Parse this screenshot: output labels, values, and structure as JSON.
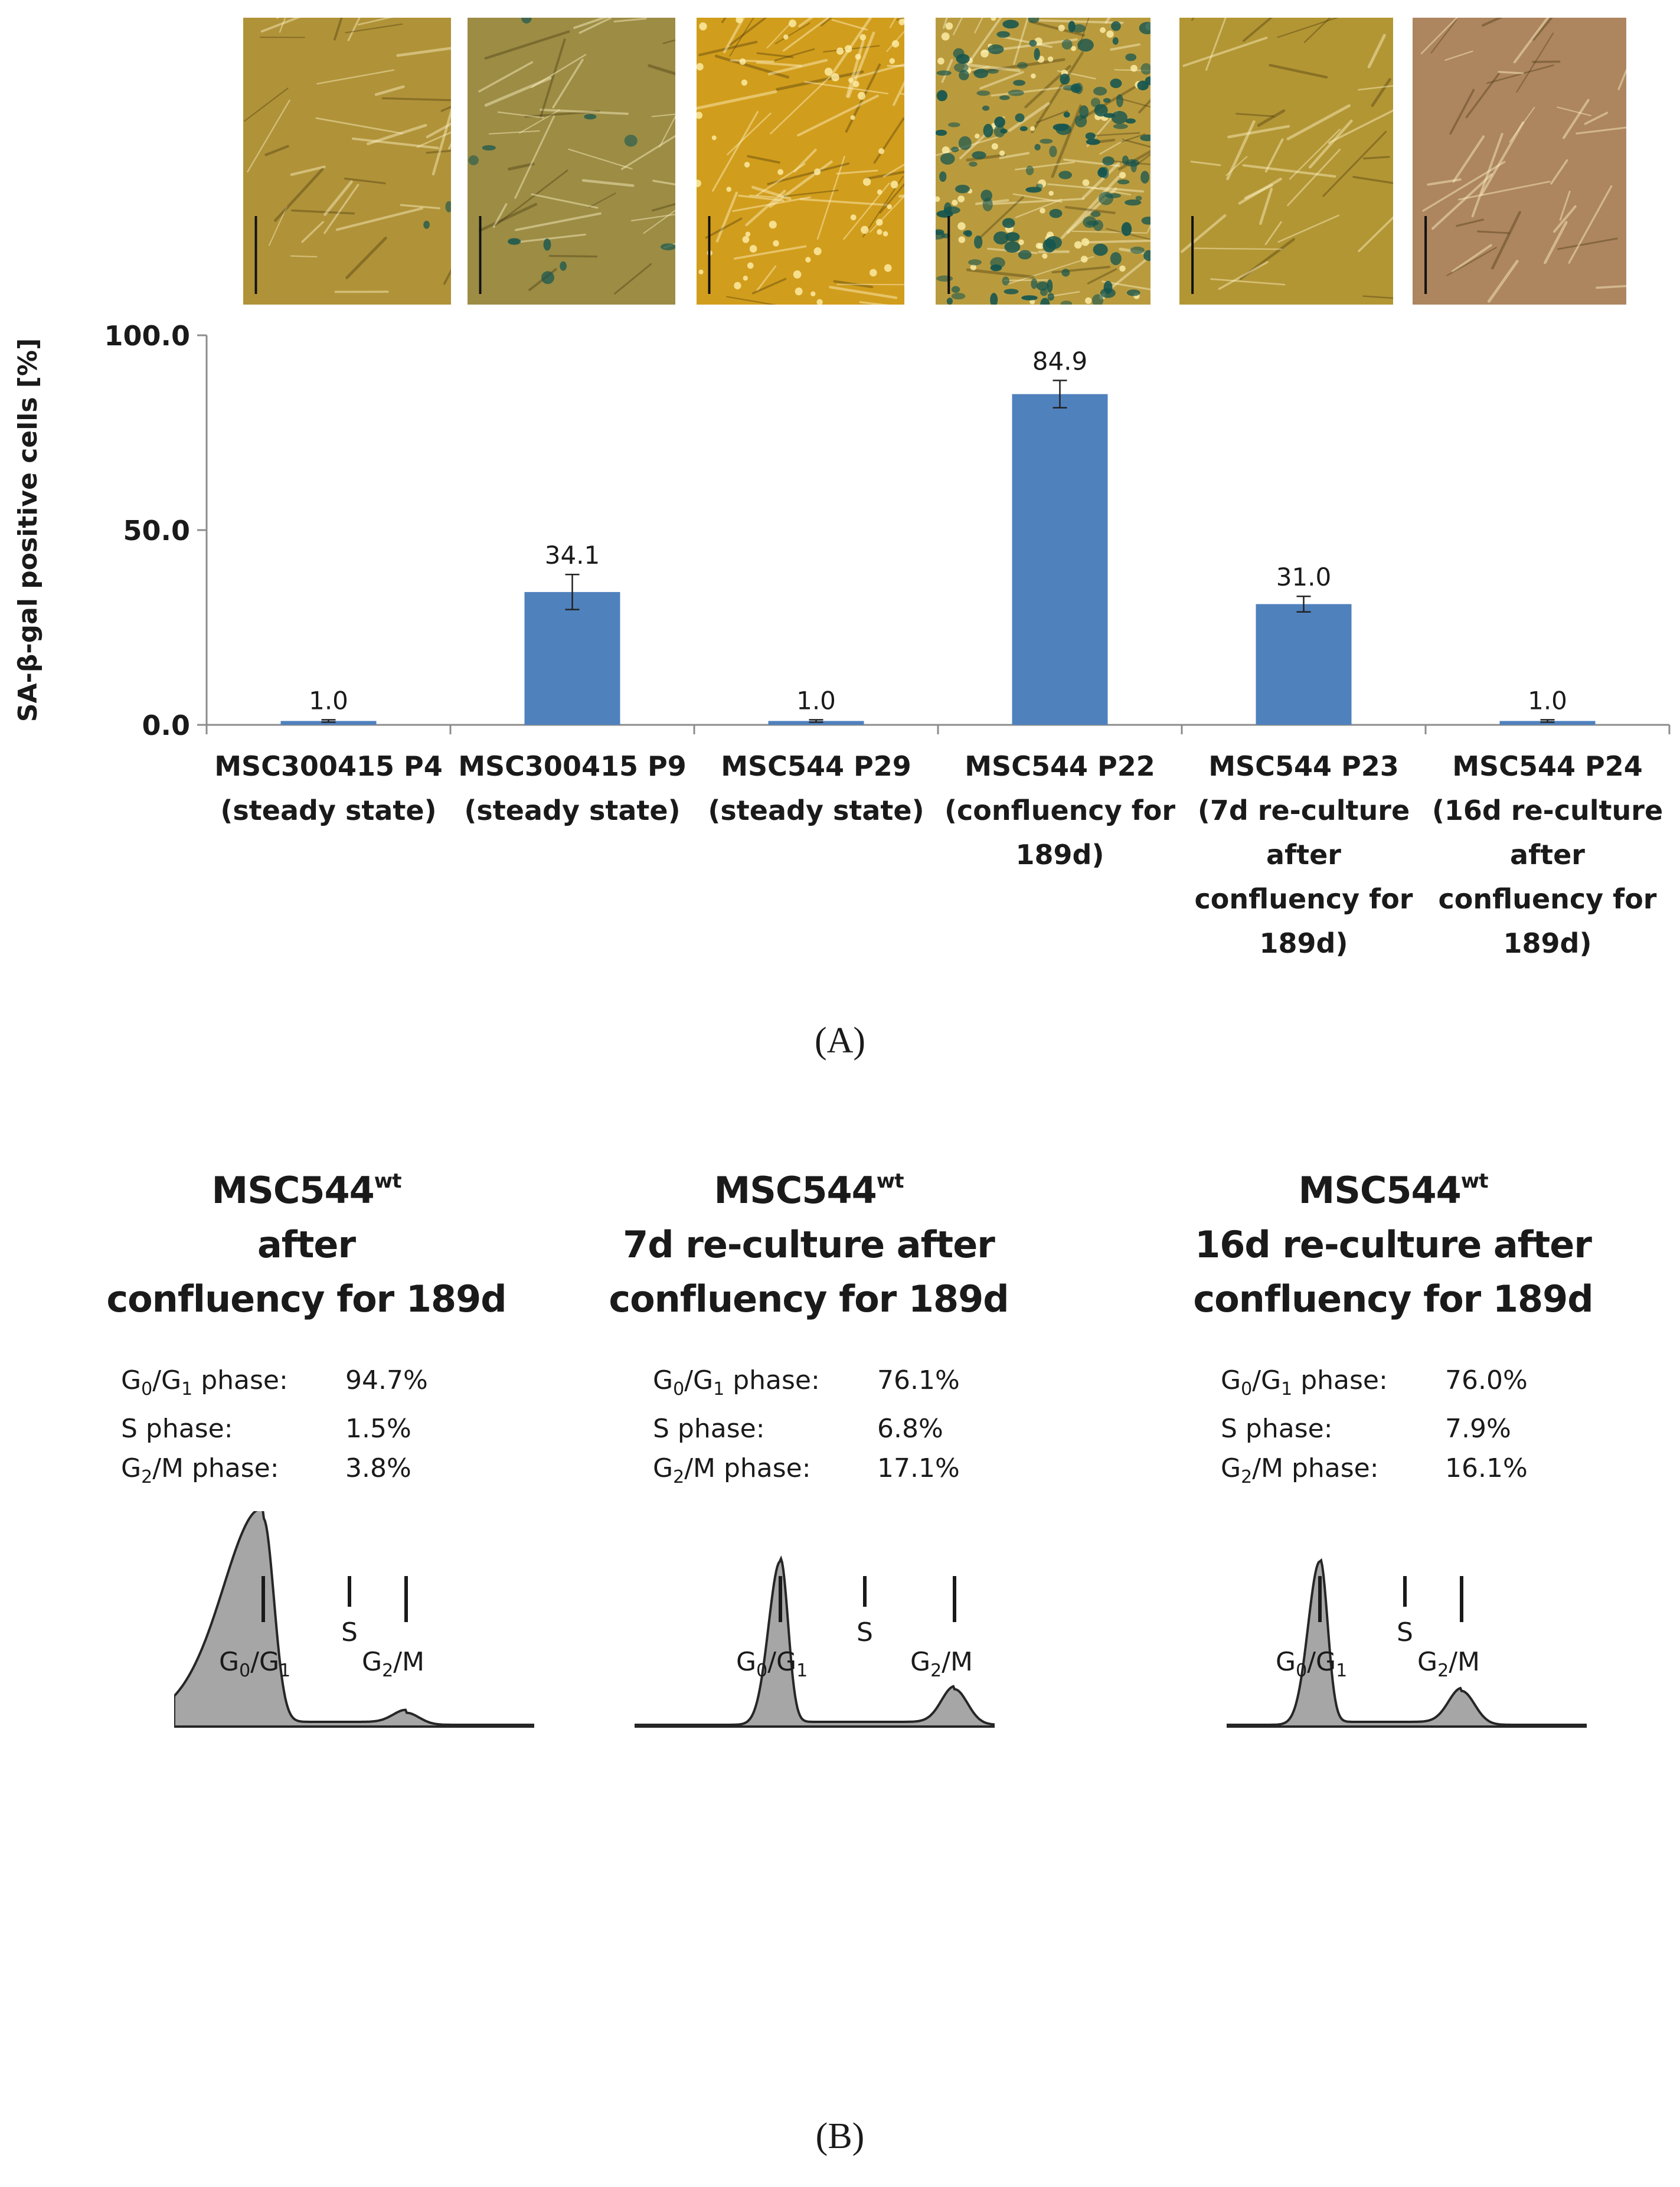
{
  "figure": {
    "panel_a_label": "(A)",
    "panel_b_label": "(B)"
  },
  "micrographs": [
    {
      "tint": "#b09238",
      "stain": "low",
      "cells": "spindle"
    },
    {
      "tint": "#9c8c44",
      "stain": "few",
      "cells": "flat"
    },
    {
      "tint": "#d19d1c",
      "stain": "none",
      "cells": "dense"
    },
    {
      "tint": "#b99b3e",
      "stain": "high",
      "cells": "dense"
    },
    {
      "tint": "#b39634",
      "stain": "none",
      "cells": "spindle"
    },
    {
      "tint": "#ad855f",
      "stain": "none",
      "cells": "spindle"
    }
  ],
  "chart_data": {
    "type": "bar",
    "ylabel": "SA-β-gal positive cells [%]",
    "ylim": [
      0,
      100
    ],
    "yticks": [
      "100.0",
      "50.0",
      "0.0"
    ],
    "ytick_values": [
      100,
      50,
      0
    ],
    "bar_color": "#4f81bd",
    "categories": [
      [
        "MSC300415 P4",
        "(steady state)"
      ],
      [
        "MSC300415 P9",
        "(steady state)"
      ],
      [
        "MSC544 P29",
        "(steady state)"
      ],
      [
        "MSC544 P22",
        "(confluency for",
        "189d)"
      ],
      [
        "MSC544 P23",
        "(7d re-culture",
        "after",
        "confluency for",
        "189d)"
      ],
      [
        "MSC544 P24",
        "(16d re-culture",
        "after",
        "confluency for",
        "189d)"
      ]
    ],
    "values": [
      1.0,
      34.1,
      1.0,
      84.9,
      31.0,
      1.0
    ],
    "value_labels": [
      "1.0",
      "34.1",
      "1.0",
      "84.9",
      "31.0",
      "1.0"
    ],
    "error_bars": [
      0.3,
      4.5,
      0.3,
      3.5,
      2.0,
      0.3
    ]
  },
  "cell_cycle": [
    {
      "title_main": "MSC544",
      "title_sup": "wt",
      "title_lines": [
        "after",
        "confluency for 189d"
      ],
      "stats": [
        {
          "label": "G0/G1 phase:",
          "value": "94.7%"
        },
        {
          "label": "S phase:",
          "value": "1.5%"
        },
        {
          "label": "G2/M phase:",
          "value": "3.8%"
        }
      ],
      "g1_peak": 94.7,
      "g2_peak": 3.8,
      "markers": {
        "g1": "G0/G1",
        "s": "S",
        "g2": "G2/M"
      }
    },
    {
      "title_main": "MSC544",
      "title_sup": "wt",
      "title_lines": [
        "7d re-culture after",
        "confluency for 189d"
      ],
      "stats": [
        {
          "label": "G0/G1 phase:",
          "value": "76.1%"
        },
        {
          "label": "S phase:",
          "value": "6.8%"
        },
        {
          "label": "G2/M phase:",
          "value": "17.1%"
        }
      ],
      "g1_peak": 76.1,
      "g2_peak": 17.1,
      "markers": {
        "g1": "G0/G1",
        "s": "S",
        "g2": "G2/M"
      }
    },
    {
      "title_main": "MSC544",
      "title_sup": "wt",
      "title_lines": [
        "16d re-culture after",
        "confluency for 189d"
      ],
      "stats": [
        {
          "label": "G0/G1 phase:",
          "value": "76.0%"
        },
        {
          "label": "S phase:",
          "value": "7.9%"
        },
        {
          "label": "G2/M phase:",
          "value": "16.1%"
        }
      ],
      "g1_peak": 76.0,
      "g2_peak": 16.1,
      "markers": {
        "g1": "G0/G1",
        "s": "S",
        "g2": "G2/M"
      }
    }
  ]
}
